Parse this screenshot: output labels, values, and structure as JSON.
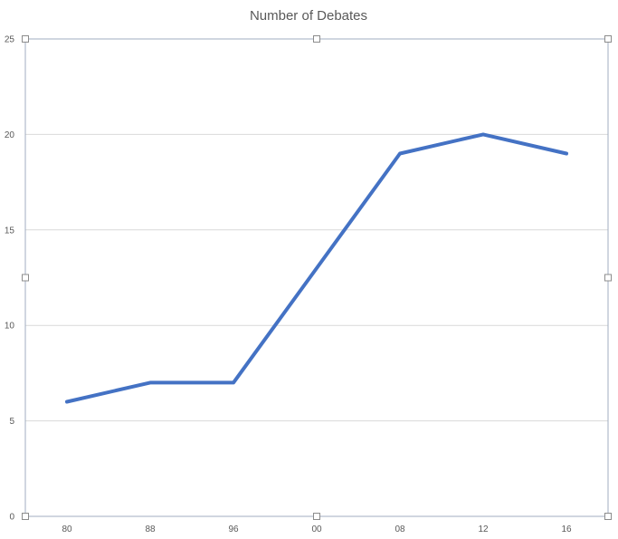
{
  "chart_data": {
    "type": "line",
    "title": "Number of Debates",
    "xlabel": "",
    "ylabel": "",
    "categories": [
      "80",
      "88",
      "96",
      "00",
      "08",
      "12",
      "16"
    ],
    "series": [
      {
        "values": [
          6,
          7,
          7,
          13,
          19,
          20,
          19
        ],
        "color": "#4472c4"
      }
    ],
    "ylim": [
      0,
      25
    ],
    "yticks": [
      0,
      5,
      10,
      15,
      20,
      25
    ],
    "grid": true,
    "legend": "none"
  }
}
